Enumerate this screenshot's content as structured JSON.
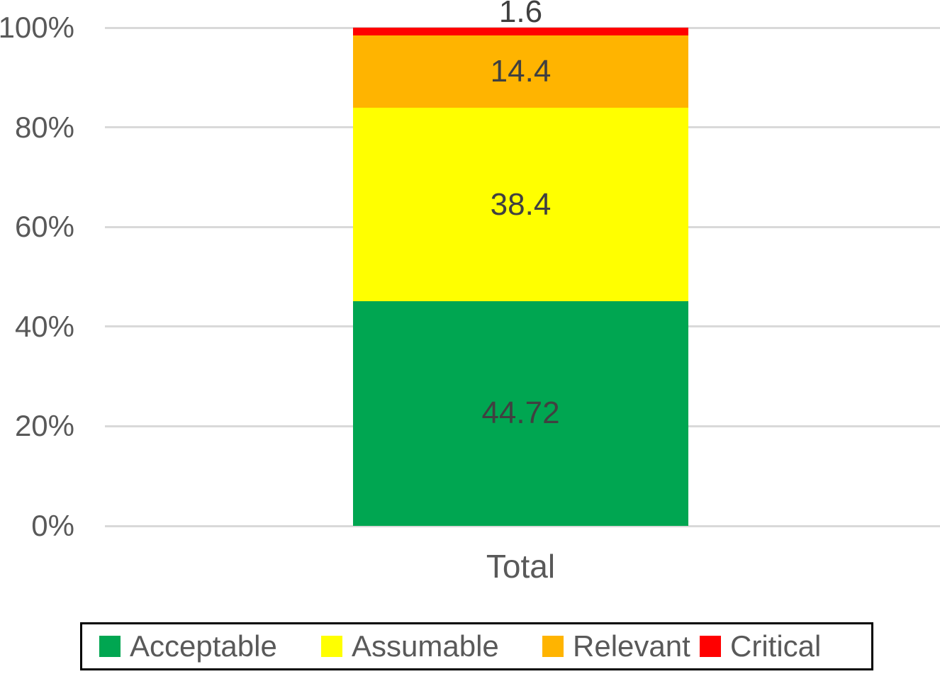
{
  "chart_data": {
    "type": "bar",
    "subtype": "stacked-100-percent-column",
    "title": "",
    "xlabel": "",
    "ylabel": "",
    "categories": [
      "Total"
    ],
    "series": [
      {
        "name": "Acceptable",
        "color": "#00A651",
        "values": [
          44.72
        ]
      },
      {
        "name": "Assumable",
        "color": "#FFFF00",
        "values": [
          38.4
        ]
      },
      {
        "name": "Relevant",
        "color": "#FFB400",
        "values": [
          14.4
        ]
      },
      {
        "name": "Critical",
        "color": "#FF0000",
        "values": [
          1.6
        ]
      }
    ],
    "value_labels": [
      "44.72",
      "38.4",
      "14.4",
      "1.6"
    ],
    "y_ticks": {
      "values": [
        0,
        20,
        40,
        60,
        80,
        100
      ],
      "labels": [
        "0%",
        "20%",
        "40%",
        "60%",
        "80%",
        "100%"
      ]
    },
    "ylim": [
      0,
      100
    ],
    "grid": true,
    "legend_position": "bottom",
    "legend_entries": [
      "Acceptable",
      "Assumable",
      "Relevant",
      "Critical"
    ]
  },
  "colors": {
    "background": "#FFFFFF",
    "gridline": "#D9D9D9",
    "tick_text": "#595959",
    "axis_text": "#595959",
    "value_text": "#404040",
    "legend_text": "#595959",
    "legend_border": "#000000"
  }
}
